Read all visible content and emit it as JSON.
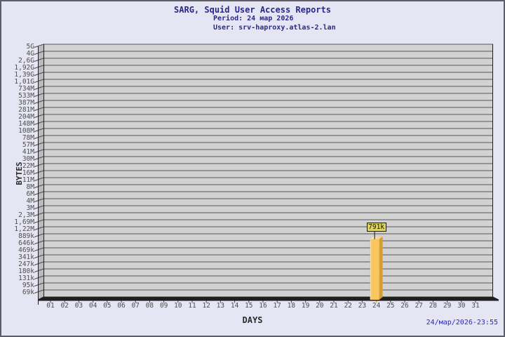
{
  "header": {
    "title": "SARG, Squid User Access Reports",
    "period": "Period: 24 мар 2026",
    "user": "User: srv-haproxy.atlas-2.lan"
  },
  "footer": {
    "timestamp": "24/мар/2026-23:55"
  },
  "colors": {
    "background": "#e5e5f4",
    "frame_border": "#5d5d65",
    "title_text": "#28288c",
    "timestamp_text": "#2727cb",
    "plot_bg": "#d2d2d2",
    "wall_bg": "#bbbbbd",
    "grid_line": "#565656",
    "axis_line": "#1f1f1f",
    "tick_line": "#4a4a4a",
    "tick_label": "#4e4e4e",
    "axis_title": "#2b2b2b",
    "bar_front": "#fbc55f",
    "bar_front_highlight": "#fde3ac",
    "bar_side": "#d79e36",
    "bar_top_light": "#fdefc9",
    "bar_top_dark": "#f6c96b",
    "badge_bg": "#dcd45f",
    "badge_border": "#1a1a1a"
  },
  "chart_data": {
    "type": "bar",
    "title": "SARG, Squid User Access Reports",
    "subtitle_lines": [
      "Period: 24 мар 2026",
      "User: srv-haproxy.atlas-2.lan"
    ],
    "xlabel": "DAYS",
    "ylabel": "BYTES",
    "grid": true,
    "legend": "none",
    "y_scale": "log-like (SARG auto ticks)",
    "x_ticks": [
      "01",
      "02",
      "03",
      "04",
      "05",
      "06",
      "07",
      "08",
      "09",
      "10",
      "11",
      "12",
      "13",
      "14",
      "15",
      "16",
      "17",
      "18",
      "19",
      "20",
      "21",
      "22",
      "23",
      "24",
      "25",
      "26",
      "27",
      "28",
      "29",
      "30",
      "31"
    ],
    "y_ticks": [
      "5G",
      "4G",
      "2,6G",
      "1,92G",
      "1,39G",
      "1,01G",
      "734M",
      "533M",
      "387M",
      "281M",
      "204M",
      "148M",
      "108M",
      "78M",
      "57M",
      "41M",
      "30M",
      "22M",
      "16M",
      "11M",
      "8M",
      "6M",
      "4M",
      "3M",
      "2,3M",
      "1,69M",
      "1,22M",
      "889k",
      "646k",
      "469k",
      "341k",
      "247k",
      "180k",
      "131k",
      "95k",
      "69k"
    ],
    "bars": [
      {
        "x": "24",
        "value": 791000,
        "label": "791k"
      }
    ]
  }
}
